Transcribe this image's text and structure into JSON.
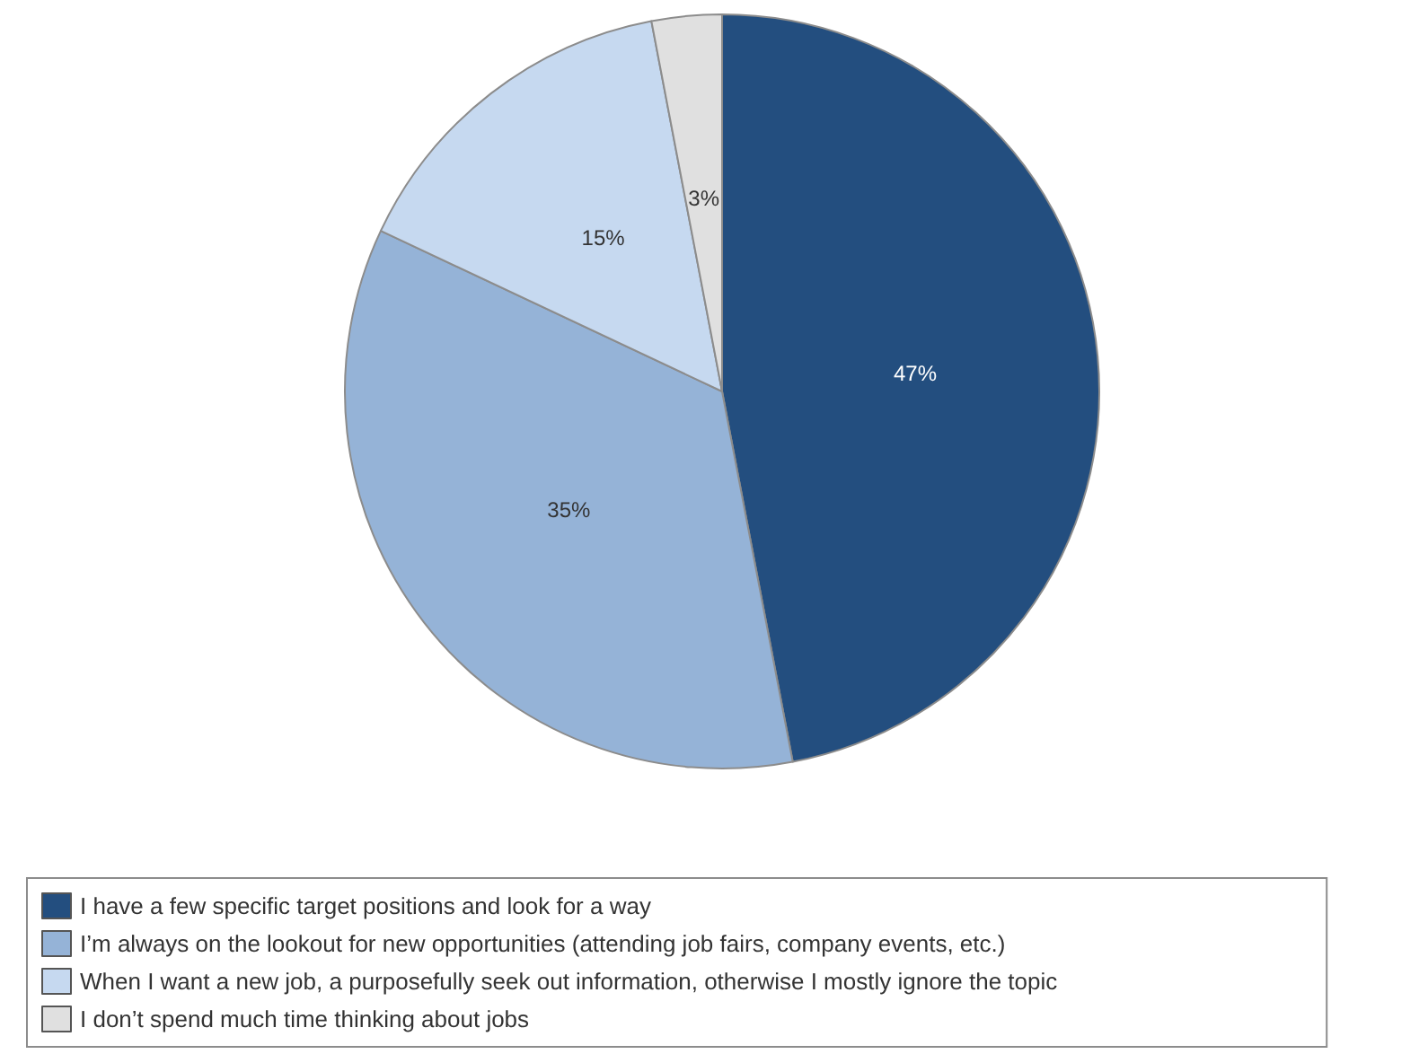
{
  "chart_data": {
    "type": "pie",
    "categories": [
      "I have a few specific target positions and look for a way",
      "I’m always on the lookout for new opportunities (attending job fairs, company events, etc.)",
      "When I want a new job, a purposefully seek out information, otherwise I mostly ignore the topic",
      "I don’t spend much time thinking about jobs"
    ],
    "values": [
      47,
      35,
      15,
      3
    ],
    "colors": [
      "#234e7f",
      "#95b3d7",
      "#c6d9f0",
      "#e0e0e0"
    ],
    "value_labels": [
      "47%",
      "35%",
      "15%",
      "3%"
    ],
    "legend": "bottom"
  }
}
